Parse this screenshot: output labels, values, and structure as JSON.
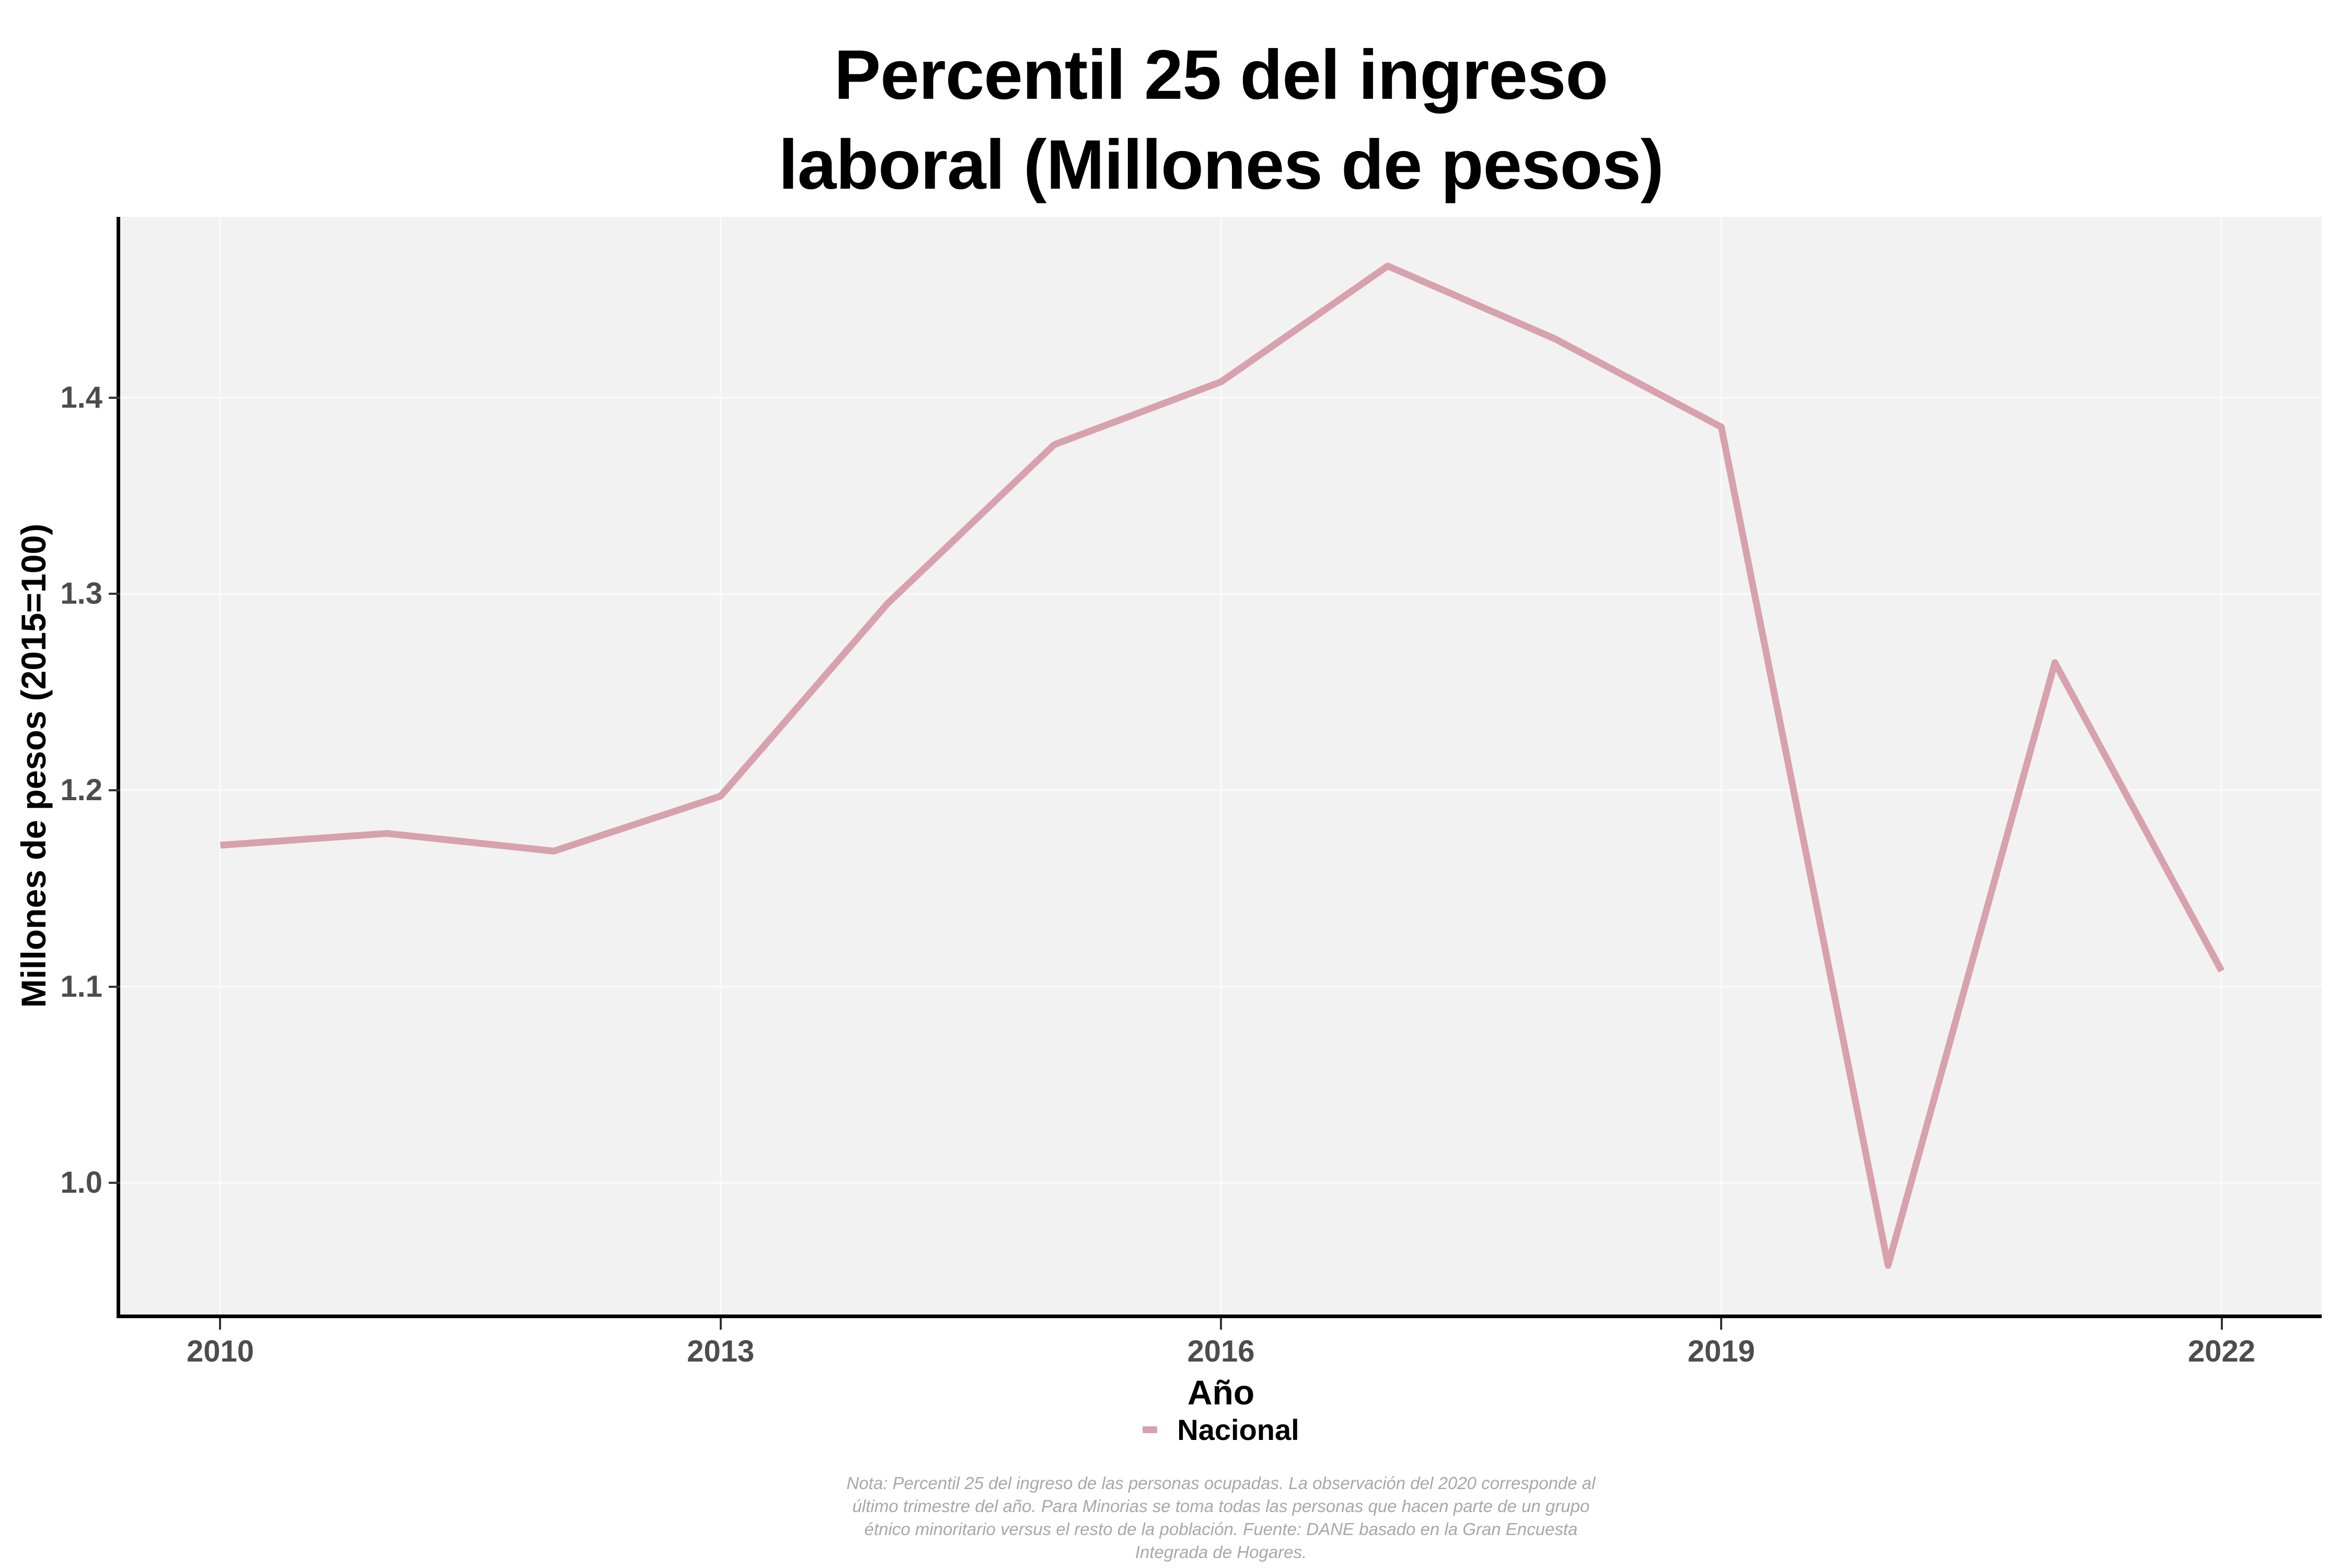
{
  "title": {
    "line1": "Percentil 25 del ingreso",
    "line2": "laboral (Millones de pesos)"
  },
  "axes": {
    "x": {
      "title": "Año",
      "tick_labels": [
        "2010",
        "2013",
        "2016",
        "2019",
        "2022"
      ],
      "tick_values": [
        2010,
        2013,
        2016,
        2019,
        2022
      ]
    },
    "y": {
      "title": "Millones de pesos (2015=100)",
      "tick_labels": [
        "1.0",
        "1.1",
        "1.2",
        "1.3",
        "1.4"
      ],
      "tick_values": [
        1.0,
        1.1,
        1.2,
        1.3,
        1.4
      ]
    }
  },
  "legend": {
    "label": "Nacional"
  },
  "note": {
    "lines": [
      "Nota: Percentil 25 del ingreso de las personas ocupadas. La observación del 2020 corresponde al",
      "último trimestre del año. Para Minorias se toma todas las personas que hacen parte de un grupo",
      "étnico minoritario versus el resto de la población. Fuente: DANE basado en la Gran Encuesta",
      "Integrada de Hogares."
    ]
  },
  "colors": {
    "line": "#D7A1AD",
    "panel_bg": "#F2F2F2",
    "grid": "#FAFAFA",
    "axis_line": "#000000",
    "tick_text": "#4D4D4D",
    "axis_title_text": "#000000",
    "note_text": "#A8A8A8"
  },
  "chart_data": {
    "type": "line",
    "title": "Percentil 25 del ingreso laboral (Millones de pesos)",
    "xlabel": "Año",
    "ylabel": "Millones de pesos (2015=100)",
    "legend_position": "bottom",
    "grid": "major",
    "xlim": [
      2009.4,
      2022.6
    ],
    "ylim": [
      0.933,
      1.492
    ],
    "x": [
      2010,
      2011,
      2012,
      2013,
      2014,
      2015,
      2016,
      2017,
      2018,
      2019,
      2020,
      2021,
      2022
    ],
    "series": [
      {
        "name": "Nacional",
        "color": "#D7A1AD",
        "values": [
          1.172,
          1.178,
          1.169,
          1.197,
          1.295,
          1.376,
          1.408,
          1.467,
          1.43,
          1.385,
          0.958,
          1.265,
          1.108
        ]
      }
    ]
  }
}
